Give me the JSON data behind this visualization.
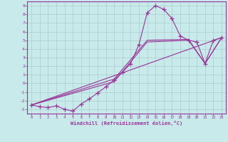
{
  "xlabel": "Windchill (Refroidissement éolien,°C)",
  "bg_color": "#c8eaea",
  "line_color": "#993399",
  "grid_color": "#aacccc",
  "xlim": [
    -0.5,
    23.5
  ],
  "ylim": [
    -3.5,
    9.5
  ],
  "xticks": [
    0,
    1,
    2,
    3,
    4,
    5,
    6,
    7,
    8,
    9,
    10,
    11,
    12,
    13,
    14,
    15,
    16,
    17,
    18,
    19,
    20,
    21,
    22,
    23
  ],
  "yticks": [
    -3,
    -2,
    -1,
    0,
    1,
    2,
    3,
    4,
    5,
    6,
    7,
    8,
    9
  ],
  "main_series": {
    "x": [
      0,
      1,
      2,
      3,
      4,
      5,
      6,
      7,
      8,
      9,
      10,
      11,
      12,
      13,
      14,
      15,
      16,
      17,
      18,
      19,
      20,
      21,
      22,
      23
    ],
    "y": [
      -2.5,
      -2.7,
      -2.8,
      -2.6,
      -3.0,
      -3.2,
      -2.4,
      -1.8,
      -1.1,
      -0.4,
      0.4,
      1.3,
      2.3,
      4.5,
      8.2,
      9.0,
      8.6,
      7.5,
      5.5,
      5.0,
      4.8,
      2.3,
      5.0,
      5.3
    ]
  },
  "trend_lines": [
    {
      "x": [
        0,
        23
      ],
      "y": [
        -2.5,
        5.3
      ]
    },
    {
      "x": [
        0,
        10,
        14,
        19,
        21,
        23
      ],
      "y": [
        -2.5,
        0.2,
        4.8,
        5.0,
        2.3,
        5.3
      ]
    },
    {
      "x": [
        0,
        10,
        14,
        19,
        21,
        23
      ],
      "y": [
        -2.5,
        0.5,
        5.0,
        5.1,
        2.3,
        5.3
      ]
    }
  ]
}
